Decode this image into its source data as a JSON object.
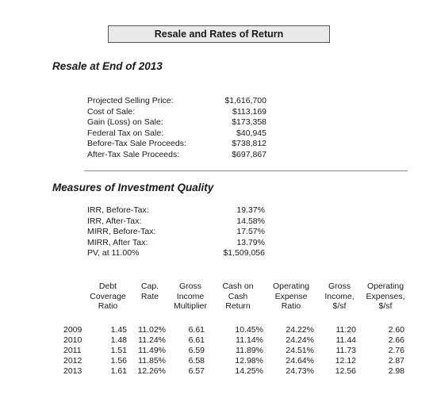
{
  "title": "Resale and Rates of Return",
  "resale": {
    "heading": "Resale at End of 2013",
    "items": [
      {
        "label": "Projected Selling Price:",
        "value": "$1,616,700"
      },
      {
        "label": "Cost of Sale:",
        "value": "$113,169"
      },
      {
        "label": "Gain (Loss) on Sale:",
        "value": "$173,358"
      },
      {
        "label": "Federal Tax on Sale:",
        "value": "$40,945"
      },
      {
        "label": "Before-Tax Sale Proceeds:",
        "value": "$738,812"
      },
      {
        "label": "After-Tax Sale Proceeds:",
        "value": "$697,867"
      }
    ]
  },
  "quality": {
    "heading": "Measures of Investment Quality",
    "items": [
      {
        "label": "IRR, Before-Tax:",
        "value": "19.37%"
      },
      {
        "label": "IRR, After-Tax:",
        "value": "14.58%"
      },
      {
        "label": "MIRR, Before-Tax:",
        "value": "17.57%"
      },
      {
        "label": "MIRR, After Tax:",
        "value": "13.79%"
      },
      {
        "label": "PV, at 11.00%",
        "value": "$1,509,056"
      }
    ]
  },
  "ratios": {
    "headers": [
      [
        "Debt",
        "Coverage",
        "Ratio"
      ],
      [
        "Cap.",
        "Rate",
        ""
      ],
      [
        "Gross",
        "Income",
        "Multiplier"
      ],
      [
        "Cash on",
        "Cash",
        "Return"
      ],
      [
        "Operating",
        "Expense",
        "Ratio"
      ],
      [
        "Gross",
        "Income,",
        "$/sf"
      ],
      [
        "Operating",
        "Expenses,",
        "$/sf"
      ]
    ],
    "rows": [
      {
        "year": "2009",
        "cells": [
          "1.45",
          "11.02%",
          "6.61",
          "10.45%",
          "24.22%",
          "11.20",
          "2.60"
        ]
      },
      {
        "year": "2010",
        "cells": [
          "1.48",
          "11.24%",
          "6.61",
          "11.14%",
          "24.24%",
          "11.44",
          "2.66"
        ]
      },
      {
        "year": "2011",
        "cells": [
          "1.51",
          "11.49%",
          "6.59",
          "11.89%",
          "24.51%",
          "11.73",
          "2.76"
        ]
      },
      {
        "year": "2012",
        "cells": [
          "1.56",
          "11.85%",
          "6.58",
          "12.98%",
          "24.64%",
          "12.12",
          "2.87"
        ]
      },
      {
        "year": "2013",
        "cells": [
          "1.61",
          "12.26%",
          "6.57",
          "14.25%",
          "24.73%",
          "12.56",
          "2.98"
        ]
      }
    ]
  }
}
